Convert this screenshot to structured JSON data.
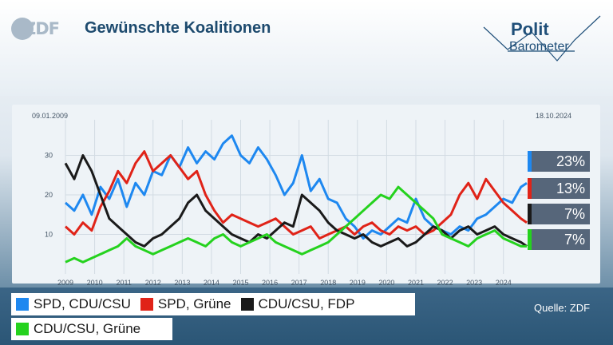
{
  "header": {
    "logo_text": "ZDF",
    "title": "Gewünschte Koalitionen",
    "brand_top": "Polit",
    "brand_bottom": "Barometer"
  },
  "dates": {
    "start": "09.01.2009",
    "end": "18.10.2024"
  },
  "source": "Quelle: ZDF",
  "colors": {
    "spd_cdu": "#1e88f0",
    "spd_gruene": "#e02318",
    "cdu_fdp": "#1a1a1a",
    "cdu_gruene": "#25d21e"
  },
  "chart_data": {
    "type": "line",
    "x_unit": "year",
    "xlim": [
      2009.0,
      2024.8
    ],
    "ylim": [
      0,
      39
    ],
    "yticks": [
      10,
      20,
      30
    ],
    "xticks": [
      2009,
      2010,
      2011,
      2012,
      2013,
      2014,
      2015,
      2016,
      2017,
      2018,
      2019,
      2020,
      2021,
      2022,
      2023,
      2024
    ],
    "series": [
      {
        "name": "SPD, CDU/CSU",
        "color": "#1e88f0",
        "final_label": "23%",
        "x": [
          2009.0,
          2009.3,
          2009.6,
          2009.9,
          2010.2,
          2010.5,
          2010.8,
          2011.1,
          2011.4,
          2011.7,
          2012.0,
          2012.3,
          2012.6,
          2012.9,
          2013.2,
          2013.5,
          2013.8,
          2014.1,
          2014.4,
          2014.7,
          2015.0,
          2015.3,
          2015.6,
          2015.9,
          2016.2,
          2016.5,
          2016.8,
          2017.1,
          2017.4,
          2017.7,
          2018.0,
          2018.3,
          2018.6,
          2018.9,
          2019.2,
          2019.5,
          2019.8,
          2020.1,
          2020.4,
          2020.7,
          2021.0,
          2021.3,
          2021.6,
          2021.9,
          2022.2,
          2022.5,
          2022.8,
          2023.1,
          2023.4,
          2023.7,
          2024.0,
          2024.3,
          2024.6,
          2024.8
        ],
        "values": [
          18,
          16,
          20,
          15,
          22,
          19,
          24,
          17,
          23,
          20,
          26,
          25,
          30,
          27,
          32,
          28,
          31,
          29,
          33,
          35,
          30,
          28,
          32,
          29,
          25,
          20,
          23,
          30,
          21,
          24,
          19,
          18,
          14,
          12,
          9,
          11,
          10,
          12,
          14,
          13,
          19,
          14,
          12,
          11,
          10,
          12,
          11,
          14,
          15,
          17,
          19,
          18,
          22,
          23
        ]
      },
      {
        "name": "SPD, Grüne",
        "color": "#e02318",
        "final_label": "13%",
        "x": [
          2009.0,
          2009.3,
          2009.6,
          2009.9,
          2010.2,
          2010.5,
          2010.8,
          2011.1,
          2011.4,
          2011.7,
          2012.0,
          2012.3,
          2012.6,
          2012.9,
          2013.2,
          2013.5,
          2013.8,
          2014.1,
          2014.4,
          2014.7,
          2015.0,
          2015.3,
          2015.6,
          2015.9,
          2016.2,
          2016.5,
          2016.8,
          2017.1,
          2017.4,
          2017.7,
          2018.0,
          2018.3,
          2018.6,
          2018.9,
          2019.2,
          2019.5,
          2019.8,
          2020.1,
          2020.4,
          2020.7,
          2021.0,
          2021.3,
          2021.6,
          2021.9,
          2022.2,
          2022.5,
          2022.8,
          2023.1,
          2023.4,
          2023.7,
          2024.0,
          2024.3,
          2024.6,
          2024.8
        ],
        "values": [
          12,
          10,
          13,
          11,
          17,
          21,
          26,
          23,
          28,
          31,
          26,
          28,
          30,
          27,
          24,
          26,
          20,
          16,
          13,
          15,
          14,
          13,
          12,
          13,
          14,
          12,
          10,
          11,
          12,
          9,
          10,
          11,
          12,
          10,
          12,
          13,
          11,
          10,
          12,
          11,
          12,
          10,
          11,
          13,
          15,
          20,
          23,
          19,
          24,
          21,
          18,
          16,
          14,
          13
        ]
      },
      {
        "name": "CDU/CSU, FDP",
        "color": "#1a1a1a",
        "final_label": "7%",
        "x": [
          2009.0,
          2009.3,
          2009.6,
          2009.9,
          2010.2,
          2010.5,
          2010.8,
          2011.1,
          2011.4,
          2011.7,
          2012.0,
          2012.3,
          2012.6,
          2012.9,
          2013.2,
          2013.5,
          2013.8,
          2014.1,
          2014.4,
          2014.7,
          2015.0,
          2015.3,
          2015.6,
          2015.9,
          2016.2,
          2016.5,
          2016.8,
          2017.1,
          2017.4,
          2017.7,
          2018.0,
          2018.3,
          2018.6,
          2018.9,
          2019.2,
          2019.5,
          2019.8,
          2020.1,
          2020.4,
          2020.7,
          2021.0,
          2021.3,
          2021.6,
          2021.9,
          2022.2,
          2022.5,
          2022.8,
          2023.1,
          2023.4,
          2023.7,
          2024.0,
          2024.3,
          2024.6,
          2024.8
        ],
        "values": [
          28,
          24,
          30,
          26,
          20,
          14,
          12,
          10,
          8,
          7,
          9,
          10,
          12,
          14,
          18,
          20,
          16,
          14,
          12,
          10,
          9,
          8,
          10,
          9,
          11,
          13,
          12,
          20,
          18,
          16,
          13,
          11,
          10,
          9,
          10,
          8,
          7,
          8,
          9,
          7,
          8,
          10,
          12,
          11,
          9,
          11,
          12,
          10,
          11,
          12,
          10,
          9,
          8,
          7
        ]
      },
      {
        "name": "CDU/CSU, Grüne",
        "color": "#25d21e",
        "final_label": "7%",
        "x": [
          2009.0,
          2009.3,
          2009.6,
          2009.9,
          2010.2,
          2010.5,
          2010.8,
          2011.1,
          2011.4,
          2011.7,
          2012.0,
          2012.3,
          2012.6,
          2012.9,
          2013.2,
          2013.5,
          2013.8,
          2014.1,
          2014.4,
          2014.7,
          2015.0,
          2015.3,
          2015.6,
          2015.9,
          2016.2,
          2016.5,
          2016.8,
          2017.1,
          2017.4,
          2017.7,
          2018.0,
          2018.3,
          2018.6,
          2018.9,
          2019.2,
          2019.5,
          2019.8,
          2020.1,
          2020.4,
          2020.7,
          2021.0,
          2021.3,
          2021.6,
          2021.9,
          2022.2,
          2022.5,
          2022.8,
          2023.1,
          2023.4,
          2023.7,
          2024.0,
          2024.3,
          2024.6,
          2024.8
        ],
        "values": [
          3,
          4,
          3,
          4,
          5,
          6,
          7,
          9,
          7,
          6,
          5,
          6,
          7,
          8,
          9,
          8,
          7,
          9,
          10,
          8,
          7,
          8,
          9,
          10,
          8,
          7,
          6,
          5,
          6,
          7,
          8,
          10,
          12,
          14,
          16,
          18,
          20,
          19,
          22,
          20,
          18,
          16,
          14,
          10,
          9,
          8,
          7,
          9,
          10,
          11,
          9,
          8,
          7,
          7
        ]
      }
    ]
  }
}
